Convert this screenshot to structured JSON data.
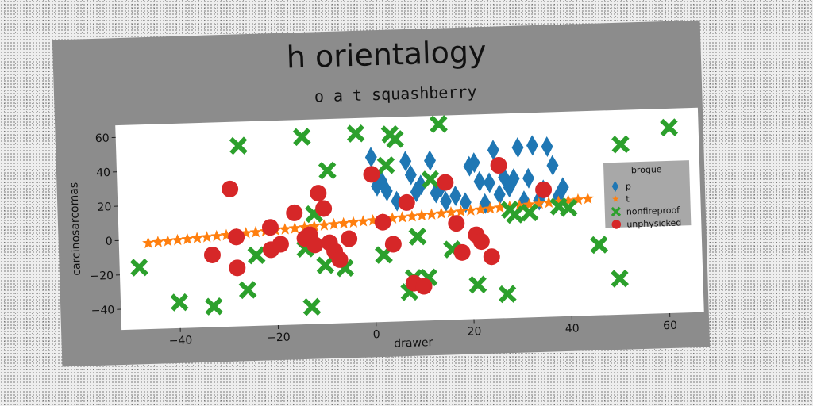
{
  "chart_data": {
    "type": "scatter",
    "title": "h orientalogy",
    "subtitle": "o a t squashberry",
    "xlabel": "drawer",
    "ylabel": "carcinosarcomas",
    "xlim": [
      -52,
      67
    ],
    "ylim": [
      -52,
      67
    ],
    "xticks": [
      -40,
      -20,
      0,
      20,
      40,
      60
    ],
    "yticks": [
      -40,
      -20,
      0,
      20,
      40,
      60
    ],
    "grid": false,
    "legend_title": "brogue",
    "legend_position": "right",
    "series": [
      {
        "name": "p",
        "marker": "diamond",
        "color": "#1f77b4",
        "x": [
          0,
          1,
          3,
          2,
          5,
          7,
          8,
          9,
          10,
          12,
          13,
          14,
          15,
          17,
          19,
          20,
          21,
          22,
          23,
          24,
          25,
          26,
          27,
          28,
          29,
          30,
          31,
          32,
          33,
          34,
          35,
          36,
          37,
          38,
          39
        ],
        "y": [
          44,
          27,
          24,
          30,
          18,
          41,
          33,
          23,
          27,
          41,
          22,
          25,
          17,
          20,
          16,
          37,
          39,
          28,
          15,
          27,
          46,
          20,
          30,
          24,
          29,
          47,
          16,
          29,
          48,
          16,
          22,
          47,
          36,
          18,
          23
        ]
      },
      {
        "name": "t",
        "marker": "star",
        "color": "#ff7f0e",
        "x": [
          -46,
          -44,
          -42,
          -40,
          -38,
          -36,
          -34,
          -32,
          -30,
          -28,
          -26,
          -24,
          -22,
          -20,
          -18,
          -16,
          -14,
          -12,
          -10,
          -8,
          -6,
          -4,
          -2,
          0,
          2,
          4,
          6,
          8,
          10,
          12,
          14,
          16,
          18,
          20,
          22,
          24,
          26,
          28,
          30,
          32,
          34,
          36,
          38,
          40,
          42,
          44
        ],
        "y": [
          -2,
          -1.6,
          -1.2,
          -0.8,
          -0.4,
          0,
          0.4,
          0.8,
          1.2,
          1.6,
          2,
          2.4,
          2.8,
          3.2,
          3.6,
          4,
          4.4,
          4.8,
          5.2,
          5.6,
          6,
          6.4,
          6.8,
          7.2,
          7.6,
          8,
          8.4,
          8.8,
          9.2,
          9.6,
          10,
          10.4,
          10.8,
          11.2,
          11.6,
          12,
          12.4,
          12.8,
          13.2,
          13.6,
          14,
          14.4,
          14.8,
          15.2,
          15.6,
          16
        ]
      },
      {
        "name": "nonfireproof",
        "marker": "x",
        "color": "#2ca02c",
        "x": [
          -48,
          -40,
          -33,
          -27,
          -26,
          -24,
          -14,
          -14,
          -13,
          -12,
          -10,
          -9,
          -6,
          -3,
          2,
          3,
          4,
          5,
          7,
          8,
          9,
          11,
          12,
          14,
          16,
          21,
          27,
          28,
          29,
          32,
          38,
          40,
          46,
          50,
          51,
          61
        ],
        "y": [
          -16,
          -37,
          -40,
          53,
          -31,
          -11,
          57,
          -8,
          -42,
          12,
          -18,
          37,
          -20,
          58,
          -13,
          39,
          57,
          54,
          -35,
          -27,
          -3,
          -27,
          30,
          62,
          -11,
          -32,
          -38,
          11,
          8,
          9,
          12,
          11,
          -11,
          -31,
          47,
          56
        ]
      },
      {
        "name": "unphysicked",
        "marker": "circle",
        "color": "#d62728",
        "x": [
          -33,
          -29,
          -28,
          -28,
          -21,
          -21,
          -19,
          -16,
          -14,
          -13,
          -12,
          -11,
          -10,
          -9,
          -8,
          -7,
          -5,
          0,
          2,
          4,
          7,
          8,
          10,
          15,
          17,
          18,
          21,
          22,
          24,
          26,
          35
        ],
        "y": [
          -10,
          28,
          0,
          -18,
          5,
          -8,
          -5,
          13,
          -2,
          0,
          -6,
          24,
          15,
          -5,
          -10,
          -15,
          -3,
          34,
          6,
          -7,
          17,
          -30,
          -32,
          28,
          4,
          -13,
          -3,
          -7,
          -16,
          37,
          22
        ]
      }
    ]
  }
}
